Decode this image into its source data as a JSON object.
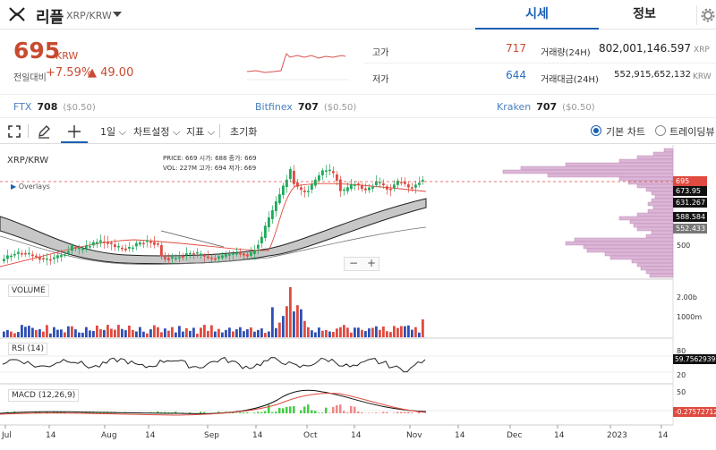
{
  "header": {
    "coin_name": "리플",
    "pair": "XRP/KRW",
    "tab_quote": "시세",
    "tab_info": "정보"
  },
  "price": {
    "current": "695",
    "unit": "KRW",
    "change_label": "전일대비",
    "change_pct": "+7.59%",
    "change_abs": "▲ 49.00"
  },
  "stats": {
    "high_label": "고가",
    "high": "717",
    "low_label": "저가",
    "low": "644",
    "vol_label": "거래량(24H)",
    "vol": "802,001,146.597",
    "vol_unit": "XRP",
    "amt_label": "거래대금(24H)",
    "amt": "552,915,652,132",
    "amt_unit": "KRW"
  },
  "exchanges": [
    {
      "name": "FTX",
      "price": "708",
      "diff": "($0.50)"
    },
    {
      "name": "Bitfinex",
      "price": "707",
      "diff": "($0.50)"
    },
    {
      "name": "Kraken",
      "price": "707",
      "diff": "($0.50)"
    }
  ],
  "toolbar": {
    "interval": "1일",
    "chart_settings": "차트설정",
    "indicators": "지표",
    "reset": "초기화",
    "basic_chart": "기본 차트",
    "trading_view": "트레이딩뷰"
  },
  "chart": {
    "symbol": "XRP/KRW",
    "overlays": "Overlays",
    "ohlc_lines": [
      "PRICE: 669   시가: 688   종가: 669",
      "VOL:   227M   고가: 694   저가: 669"
    ],
    "volume_label": "VOLUME",
    "rsi_label": "RSI (14)",
    "macd_label": "MACD (12,26,9)",
    "price_axis": [
      "700",
      "600",
      "500"
    ],
    "price_tags": [
      "695",
      "673.95",
      "631.267",
      "588.584",
      "552.433"
    ],
    "price_tag_colors": [
      "#e04a3f",
      "#111111",
      "#111111",
      "#111111",
      "#777777"
    ],
    "vol_axis": [
      "2.00b",
      "1000m"
    ],
    "rsi_axis": [
      "80",
      "50",
      "20"
    ],
    "rsi_tag": "59.75629396",
    "macd_axis": [
      "50",
      "0"
    ],
    "macd_tag": "-0.27572712",
    "x_axis": [
      "Jul",
      "14",
      "Aug",
      "14",
      "Sep",
      "14",
      "Oct",
      "14",
      "Nov",
      "14",
      "Dec",
      "14",
      "2023",
      "14"
    ]
  }
}
